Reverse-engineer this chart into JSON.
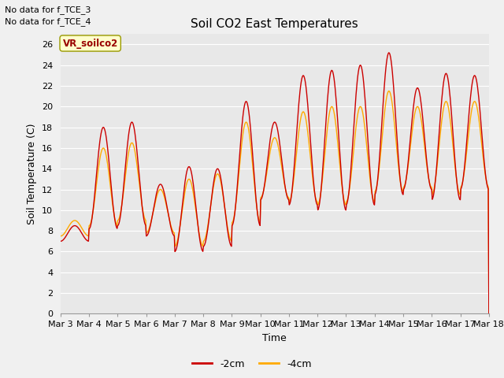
{
  "title": "Soil CO2 East Temperatures",
  "xlabel": "Time",
  "ylabel": "Soil Temperature (C)",
  "ylim": [
    0,
    27
  ],
  "yticks": [
    0,
    2,
    4,
    6,
    8,
    10,
    12,
    14,
    16,
    18,
    20,
    22,
    24,
    26
  ],
  "xtick_labels": [
    "Mar 3",
    "Mar 4",
    "Mar 5",
    "Mar 6",
    "Mar 7",
    "Mar 8",
    "Mar 9",
    "Mar 10",
    "Mar 11",
    "Mar 12",
    "Mar 13",
    "Mar 14",
    "Mar 15",
    "Mar 16",
    "Mar 17",
    "Mar 18"
  ],
  "color_2cm": "#cc0000",
  "color_4cm": "#ffaa00",
  "legend_label_2cm": "-2cm",
  "legend_label_4cm": "-4cm",
  "annotation_lines": [
    "No data for f_TCE_3",
    "No data for f_TCE_4"
  ],
  "legend_box_label": "VR_soilco2",
  "bg_color": "#e8e8e8",
  "grid_color": "#ffffff",
  "peaks_2cm": [
    8.5,
    18.0,
    18.5,
    12.5,
    14.2,
    14.0,
    20.5,
    18.5,
    23.0,
    23.5,
    24.0,
    25.2,
    21.8,
    23.2,
    23.0
  ],
  "troughs_2cm": [
    7.0,
    8.2,
    8.5,
    7.5,
    6.0,
    6.5,
    8.5,
    11.0,
    10.5,
    10.0,
    10.5,
    11.5,
    12.0,
    11.0,
    12.0
  ],
  "peaks_4cm": [
    9.0,
    16.0,
    16.5,
    12.0,
    13.0,
    13.5,
    18.5,
    17.0,
    19.5,
    20.0,
    20.0,
    21.5,
    20.0,
    20.5,
    20.5
  ],
  "troughs_4cm": [
    7.5,
    8.5,
    9.0,
    7.8,
    6.5,
    7.0,
    8.8,
    11.2,
    10.8,
    10.5,
    10.8,
    11.8,
    12.2,
    11.5,
    12.2
  ],
  "n_days": 15,
  "n_points_per_day": 48
}
